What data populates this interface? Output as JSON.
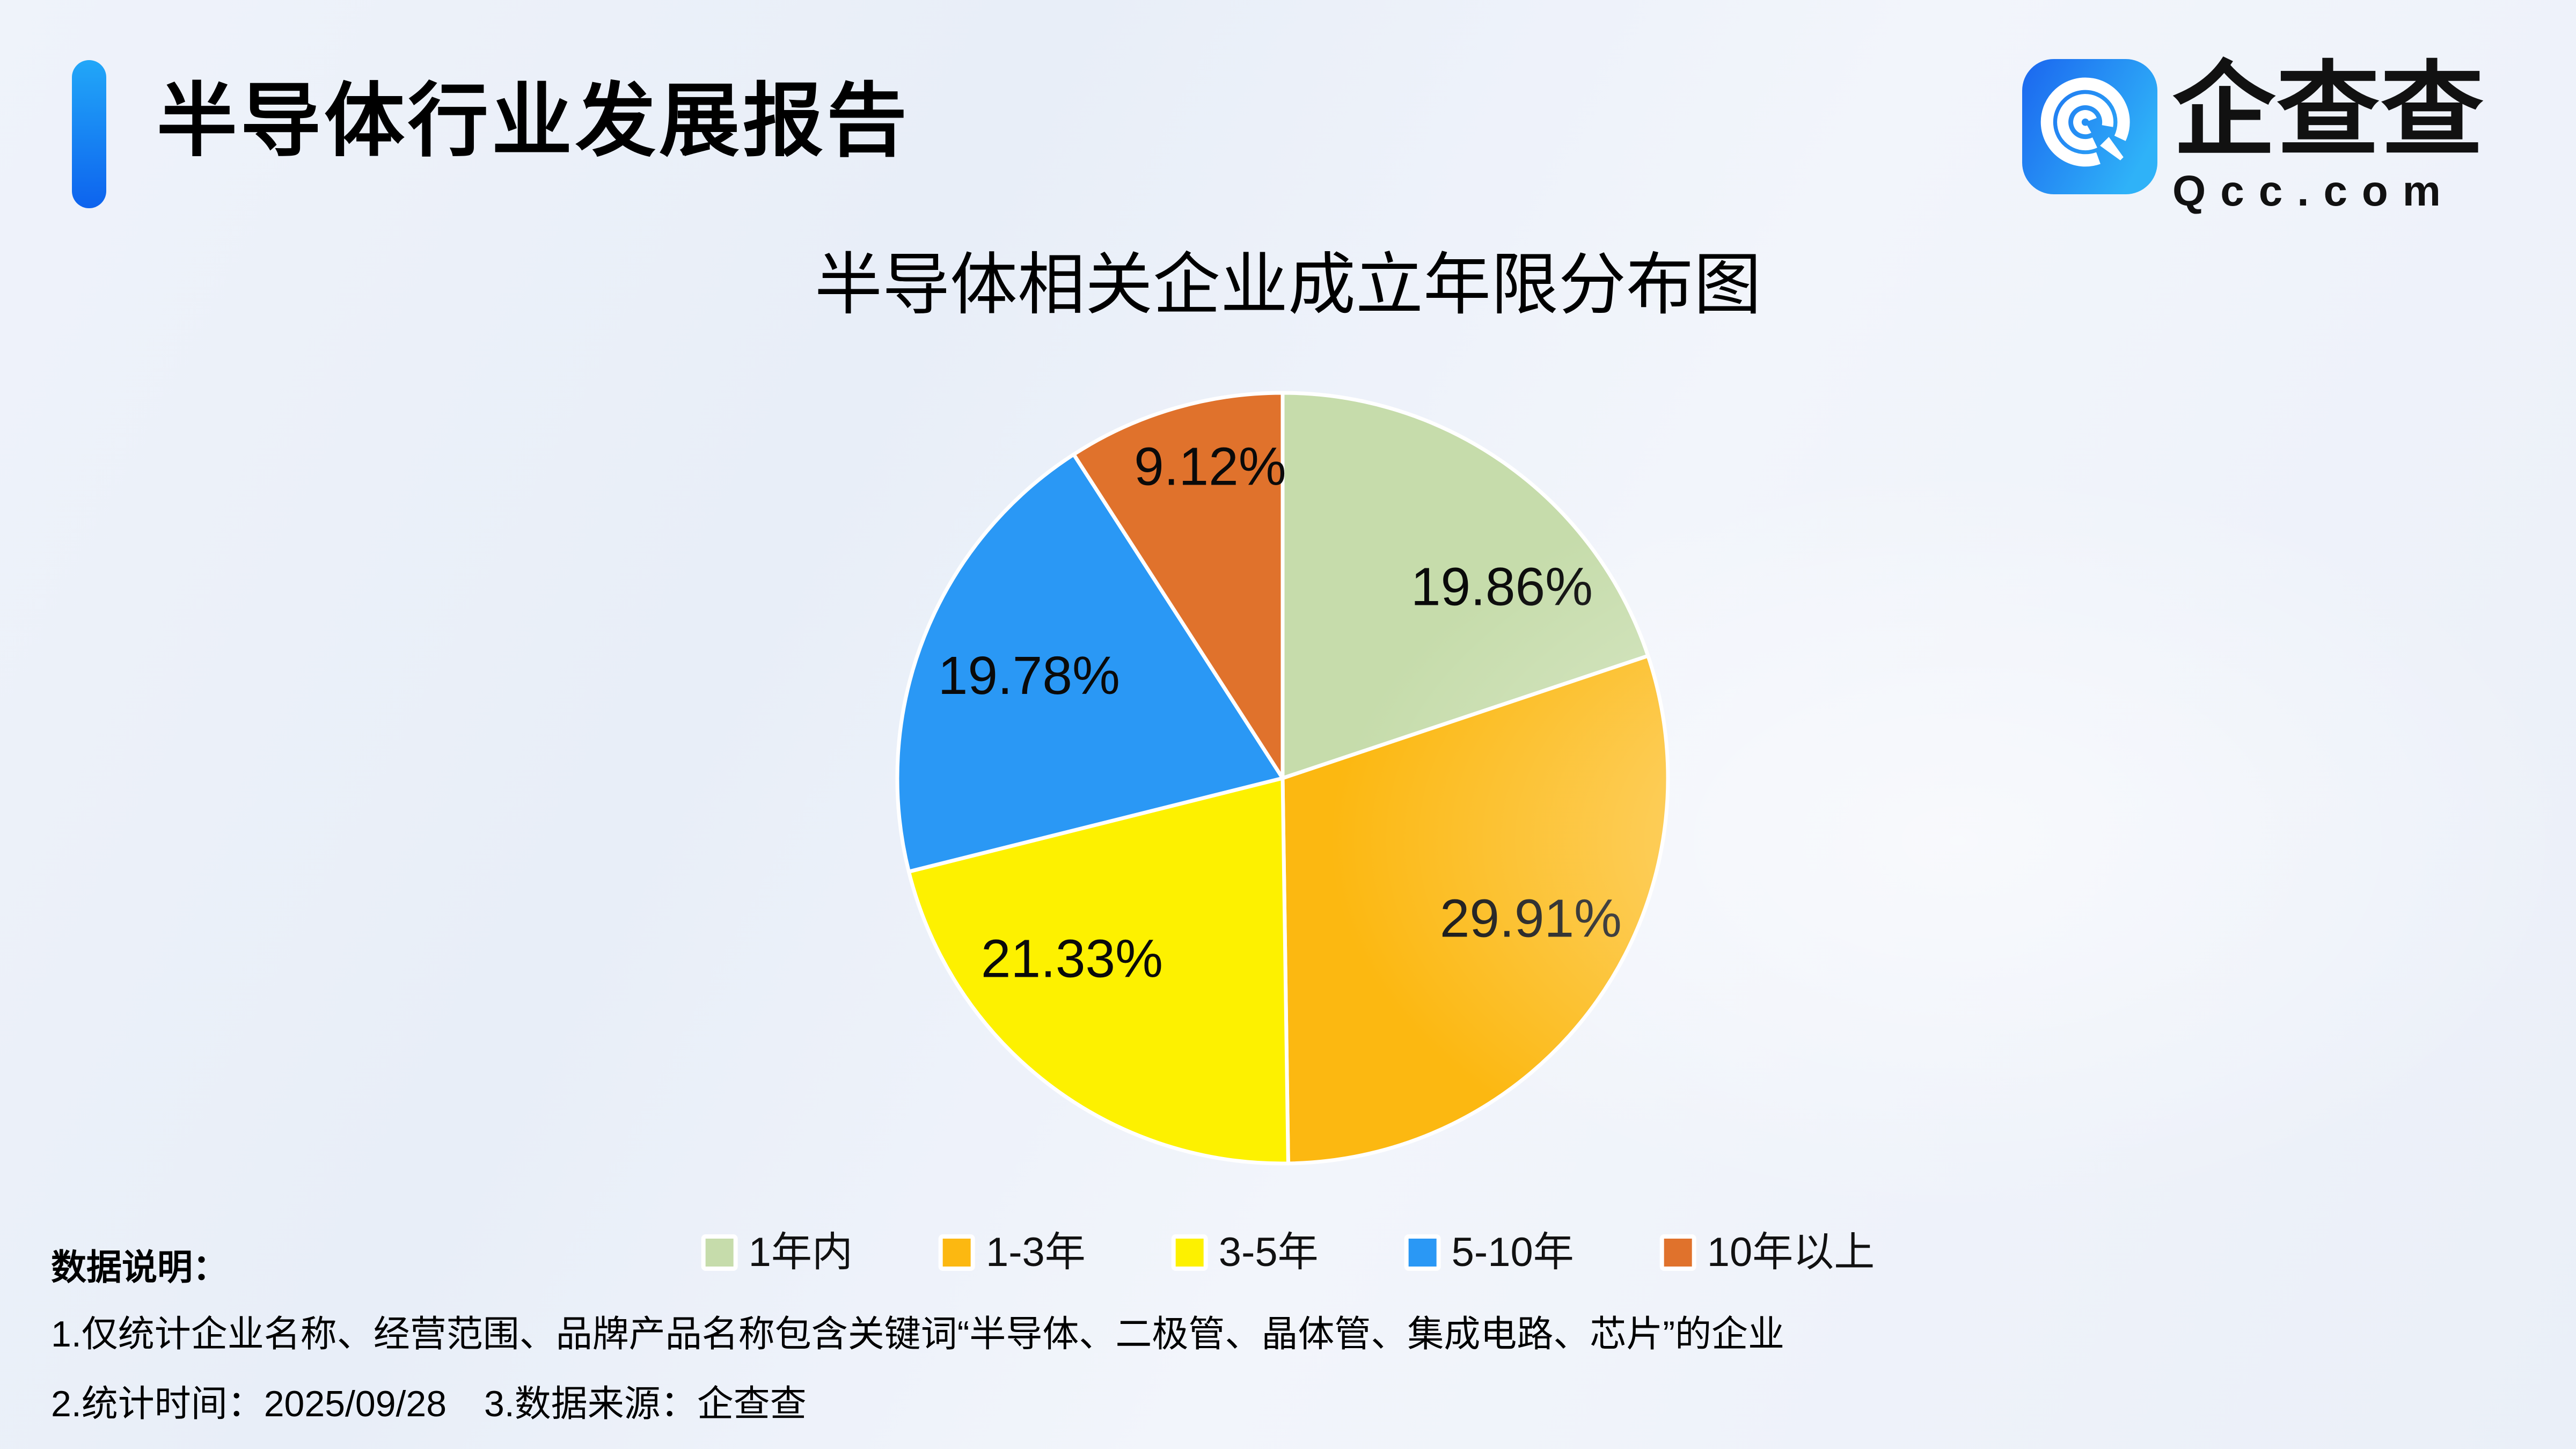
{
  "header": {
    "title": "半导体行业发展报告"
  },
  "logo": {
    "brand_cn": "企查查",
    "brand_en": "Qcc.com"
  },
  "chart_data": {
    "type": "pie",
    "title": "半导体相关企业成立年限分布图",
    "categories": [
      "1年内",
      "1-3年",
      "3-5年",
      "5-10年",
      "10年以上"
    ],
    "values": [
      19.86,
      29.91,
      21.33,
      19.78,
      9.12
    ],
    "value_labels": [
      "19.86%",
      "29.91%",
      "21.33%",
      "19.78%",
      "9.12%"
    ],
    "unit": "%",
    "colors": [
      "#c6dcab",
      "#fcb811",
      "#fdf100",
      "#2a98f5",
      "#e0722c"
    ],
    "slice_border_color": "#ffffff",
    "start_angle": "12-oclock-clockwise",
    "legend_position": "bottom",
    "label_layout": [
      {
        "r": 0.755,
        "angle": 48.9
      },
      {
        "r": 0.74,
        "angle": 119.5
      },
      {
        "r": 0.72,
        "angle": 229.4
      },
      {
        "r": 0.71,
        "angle": 292.0
      },
      {
        "r": 0.83,
        "angle": 346.9
      }
    ]
  },
  "footnote": {
    "heading": "数据说明：",
    "line1": "1.仅统计企业名称、经营范围、品牌产品名称包含关键词“半导体、二极管、晶体管、集成电路、芯片”的企业",
    "line2a": "2.统计时间：2025/09/28",
    "line2b": "3.数据来源：企查查"
  },
  "theme": {
    "accent_bar_gradient": [
      "#22a7f8",
      "#0d63ee"
    ],
    "icon_gradient": [
      "#1b66ef",
      "#2fb2f8"
    ],
    "background": "#edf1f9",
    "text_color": "#0a0a0a"
  }
}
